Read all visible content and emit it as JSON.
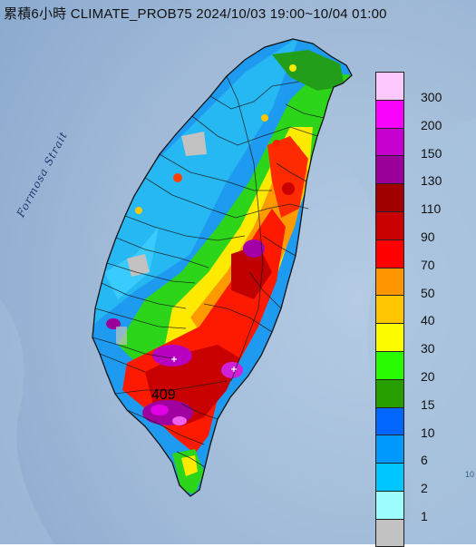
{
  "title": "累積6小時 CLIMATE_PROB75 2024/10/03 19:00~10/04 01:00",
  "strait_label": "Formosa Strait",
  "max_label": "409",
  "corner_label": "10",
  "legend": [
    {
      "label": "300",
      "color": "#fdc8fd"
    },
    {
      "label": "200",
      "color": "#f902f9"
    },
    {
      "label": "150",
      "color": "#c600cf"
    },
    {
      "label": "130",
      "color": "#9b009b"
    },
    {
      "label": "110",
      "color": "#a00000"
    },
    {
      "label": "90",
      "color": "#c80000"
    },
    {
      "label": "70",
      "color": "#fe0000"
    },
    {
      "label": "50",
      "color": "#fd9600"
    },
    {
      "label": "40",
      "color": "#fdc600"
    },
    {
      "label": "30",
      "color": "#fdfb00"
    },
    {
      "label": "20",
      "color": "#29fb00"
    },
    {
      "label": "15",
      "color": "#279e00"
    },
    {
      "label": "10",
      "color": "#0166fd"
    },
    {
      "label": "6",
      "color": "#0099fe"
    },
    {
      "label": "2",
      "color": "#00c6ff"
    },
    {
      "label": "1",
      "color": "#9efdfe"
    },
    {
      "label": "",
      "color": "#c2c2c2"
    }
  ],
  "colors": {
    "sea": "#9ab7d6",
    "land_bg": "#b9c7d6",
    "outline": "#1a1a1a"
  }
}
